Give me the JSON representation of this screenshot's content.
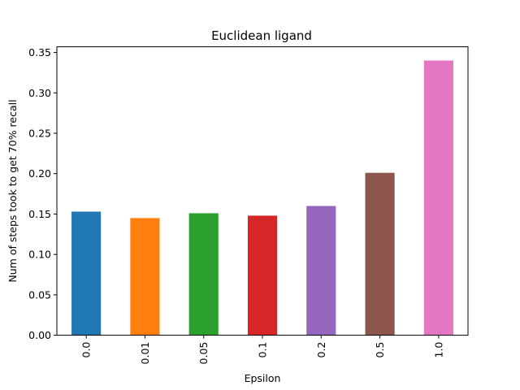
{
  "chart_data": {
    "type": "bar",
    "title": "Euclidean ligand",
    "xlabel": "Epsilon",
    "ylabel": "Num of steps took to get 70% recall",
    "categories": [
      "0.0",
      "0.01",
      "0.05",
      "0.1",
      "0.2",
      "0.5",
      "1.0"
    ],
    "values": [
      0.153,
      0.145,
      0.151,
      0.148,
      0.16,
      0.201,
      0.34
    ],
    "colors": [
      "#1f77b4",
      "#ff7f0e",
      "#2ca02c",
      "#d62728",
      "#9467bd",
      "#8c564b",
      "#e377c2"
    ],
    "ylim": [
      0,
      0.357
    ],
    "yticks": [
      0.0,
      0.05,
      0.1,
      0.15,
      0.2,
      0.25,
      0.3,
      0.35
    ],
    "ytick_labels": [
      "0.00",
      "0.05",
      "0.10",
      "0.15",
      "0.20",
      "0.25",
      "0.30",
      "0.35"
    ],
    "grid": false,
    "legend": false
  }
}
